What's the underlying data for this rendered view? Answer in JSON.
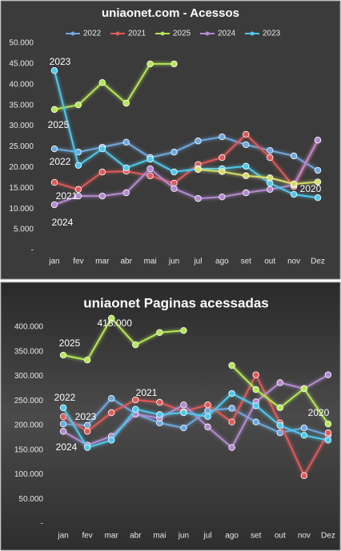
{
  "chart_data": [
    {
      "type": "line",
      "title": "uniaonet.com - Acessos",
      "categories": [
        "jan",
        "fev",
        "mar",
        "abr",
        "mai",
        "jun",
        "jul",
        "ago",
        "set",
        "out",
        "nov",
        "Dez"
      ],
      "ylim": [
        0,
        50000
      ],
      "yticks": [
        {
          "value": 0,
          "label": "-"
        },
        {
          "value": 5000,
          "label": "5.000"
        },
        {
          "value": 10000,
          "label": "10.000"
        },
        {
          "value": 15000,
          "label": "15.000"
        },
        {
          "value": 20000,
          "label": "20.000"
        },
        {
          "value": 25000,
          "label": "25.000"
        },
        {
          "value": 30000,
          "label": "30.000"
        },
        {
          "value": 35000,
          "label": "35.000"
        },
        {
          "value": 40000,
          "label": "40.000"
        },
        {
          "value": 45000,
          "label": "45.000"
        },
        {
          "value": 50000,
          "label": "50.000"
        }
      ],
      "grid": false,
      "legend": "top",
      "series": [
        {
          "name": "2022",
          "color": "#6fa8e0",
          "values": [
            24500,
            23700,
            24900,
            26100,
            22400,
            23700,
            26400,
            27400,
            25500,
            24100,
            22800,
            19300
          ]
        },
        {
          "name": "2021",
          "color": "#e05a5a",
          "values": [
            16400,
            14700,
            18900,
            19100,
            18000,
            16200,
            20700,
            22400,
            28000,
            22400,
            15400,
            26600
          ]
        },
        {
          "name": "2025",
          "color": "#b5e655",
          "values": [
            34000,
            35100,
            40500,
            35500,
            45000,
            45000,
            null,
            null,
            null,
            null,
            null,
            null
          ]
        },
        {
          "name": "2024",
          "color": "#b48ad0",
          "values": [
            11000,
            13100,
            13100,
            13900,
            19700,
            14900,
            12500,
            12900,
            13900,
            14700,
            15800,
            26600
          ]
        },
        {
          "name": "2023",
          "color": "#4fc8ec",
          "values": [
            43400,
            20500,
            24500,
            19900,
            22000,
            18900,
            19700,
            19700,
            20300,
            16200,
            13500,
            12700
          ]
        },
        {
          "name": "2020",
          "color": "#d8dc6a",
          "legend": false,
          "values": [
            null,
            null,
            null,
            null,
            null,
            null,
            19500,
            19000,
            18000,
            17500,
            16000,
            16500
          ]
        }
      ],
      "annotations": [
        "2023",
        "2025",
        "2022",
        "2021",
        "2024",
        "2020"
      ]
    },
    {
      "type": "line",
      "title": "uniaonet  Paginas acessadas",
      "categories": [
        "jan",
        "fev",
        "mar",
        "abr",
        "mai",
        "jun",
        "jul",
        "ago",
        "set",
        "out",
        "nov",
        "Dez"
      ],
      "ylim": [
        0,
        400000
      ],
      "yticks": [
        {
          "value": 0,
          "label": "-"
        },
        {
          "value": 50000,
          "label": "50.000"
        },
        {
          "value": 100000,
          "label": "100.000"
        },
        {
          "value": 150000,
          "label": "150.000"
        },
        {
          "value": 200000,
          "label": "200.000"
        },
        {
          "value": 250000,
          "label": "250.000"
        },
        {
          "value": 300000,
          "label": "300.000"
        },
        {
          "value": 350000,
          "label": "350.000"
        },
        {
          "value": 400000,
          "label": "400.000"
        }
      ],
      "grid": false,
      "series": [
        {
          "name": "2022",
          "color": "#6fa8e0",
          "values": [
            203000,
            200000,
            255000,
            224000,
            205000,
            195000,
            230000,
            235000,
            207000,
            185000,
            195000,
            180000
          ]
        },
        {
          "name": "2021",
          "color": "#e05a5a",
          "values": [
            218000,
            188000,
            226000,
            252000,
            247000,
            228000,
            242000,
            207000,
            303000,
            205000,
            98000,
            185000
          ]
        },
        {
          "name": "2025",
          "color": "#b5e655",
          "values": [
            343000,
            333000,
            418000,
            364000,
            389000,
            393000,
            null,
            null,
            null,
            null,
            null,
            null
          ],
          "value_labels": [
            null,
            null,
            "418.000",
            null,
            null,
            null,
            null,
            null,
            null,
            null,
            null,
            null
          ]
        },
        {
          "name": "2024",
          "color": "#b48ad0",
          "values": [
            188000,
            160000,
            178000,
            223000,
            215000,
            242000,
            197000,
            155000,
            248000,
            287000,
            275000,
            303000
          ]
        },
        {
          "name": "2023",
          "color": "#4fc8ec",
          "values": [
            236000,
            155000,
            170000,
            233000,
            222000,
            226000,
            218000,
            265000,
            240000,
            200000,
            180000,
            170000
          ]
        },
        {
          "name": "2020",
          "color": "#b5e655",
          "values": [
            null,
            null,
            null,
            null,
            null,
            null,
            null,
            322000,
            273000,
            236000,
            275000,
            203000
          ]
        }
      ],
      "annotations": [
        "2025",
        "2022",
        "2021",
        "2023",
        "2024",
        "2020"
      ]
    }
  ]
}
